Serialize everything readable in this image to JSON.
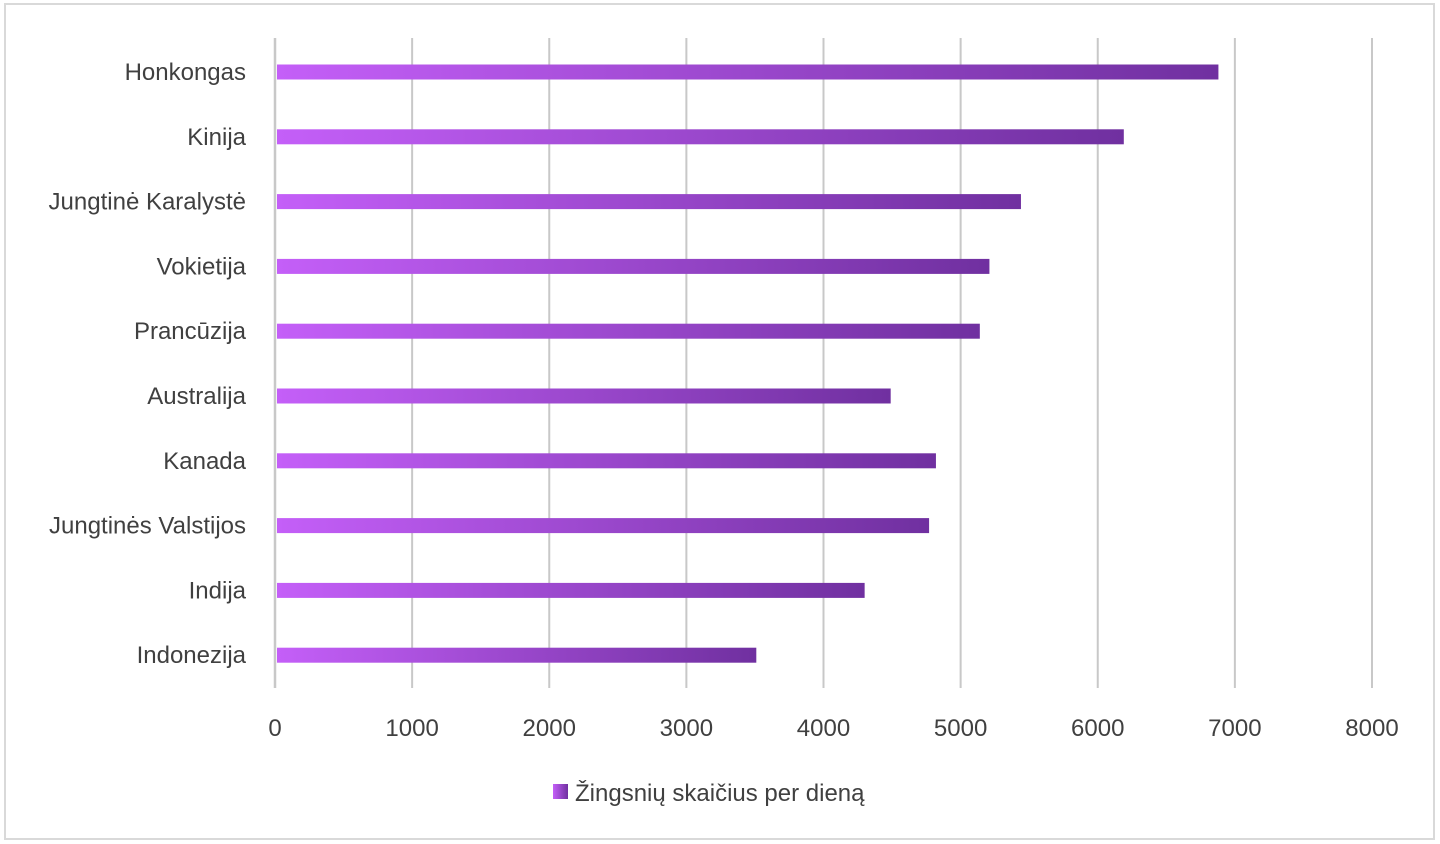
{
  "chart_data": {
    "type": "bar",
    "orientation": "horizontal",
    "categories": [
      "Honkongas",
      "Kinija",
      "Jungtinė Karalystė",
      "Vokietija",
      "Prancūzija",
      "Australija",
      "Kanada",
      "Jungtinės Valstijos",
      "Indija",
      "Indonezija"
    ],
    "series": [
      {
        "name": "Žingsnių skaičius per dieną",
        "values": [
          6880,
          6190,
          5440,
          5210,
          5140,
          4490,
          4820,
          4770,
          4300,
          3510
        ]
      }
    ],
    "xlim": [
      0,
      8000
    ],
    "ticks": [
      "0",
      "1000",
      "2000",
      "3000",
      "4000",
      "5000",
      "6000",
      "7000",
      "8000"
    ],
    "grid": "vertical",
    "legend_position": "bottom",
    "colors": {
      "bar_start": "#c45ff8",
      "bar_end": "#7030a0",
      "grid": "#c8c8c8",
      "text": "#404040"
    }
  }
}
